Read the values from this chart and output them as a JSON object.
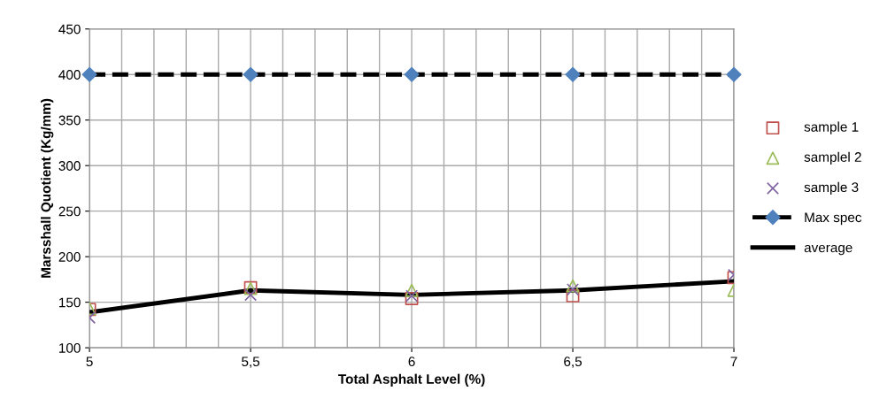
{
  "chart_data": {
    "type": "scatter",
    "xlabel": "Total Asphalt Level (%)",
    "ylabel": "Marsshall Quotient (Kg/mm)",
    "x": [
      5,
      5.5,
      6,
      6.5,
      7
    ],
    "xlim": [
      5,
      7
    ],
    "ylim": [
      100,
      450
    ],
    "xticks": [
      5,
      {
        "value": 5.1,
        "label": null
      },
      {
        "value": 5.2,
        "label": null
      },
      {
        "value": 5.3,
        "label": null
      },
      {
        "value": 5.4,
        "label": null
      },
      {
        "value": 5.5,
        "label": "5,5"
      },
      {
        "value": 5.6,
        "label": null
      },
      {
        "value": 5.7,
        "label": null
      },
      {
        "value": 5.8,
        "label": null
      },
      {
        "value": 5.9,
        "label": null
      },
      6,
      {
        "value": 6.1,
        "label": null
      },
      {
        "value": 6.2,
        "label": null
      },
      {
        "value": 6.3,
        "label": null
      },
      {
        "value": 6.4,
        "label": null
      },
      {
        "value": 6.5,
        "label": "6,5"
      },
      {
        "value": 6.6,
        "label": null
      },
      {
        "value": 6.7,
        "label": null
      },
      {
        "value": 6.8,
        "label": null
      },
      {
        "value": 6.9,
        "label": null
      },
      7
    ],
    "yticks": [
      100,
      150,
      200,
      250,
      300,
      350,
      400,
      450
    ],
    "grid": true,
    "legend": "right",
    "series": [
      {
        "name": "sample 1",
        "marker": "square",
        "color": "#c0504d",
        "values": [
          142,
          166,
          154,
          157,
          177
        ]
      },
      {
        "name": "samplel 2",
        "marker": "triangle",
        "color": "#9bbb59",
        "values": [
          143,
          165,
          163,
          168,
          163
        ]
      },
      {
        "name": "sample 3",
        "marker": "cross",
        "color": "#8064a2",
        "values": [
          133,
          158,
          157,
          164,
          180
        ]
      },
      {
        "name": "Max spec",
        "type": "line",
        "marker": "diamond",
        "line_style": "dashed",
        "color": "#000000",
        "colors": [
          "#4f81bd",
          "#4f81bd",
          "#4f81bd",
          "#4f81bd",
          "#4f81bd"
        ],
        "values": [
          400,
          400,
          400,
          400,
          400
        ]
      },
      {
        "name": "average",
        "type": "line",
        "marker": "none",
        "line_style": "solid",
        "color": "#000000",
        "values": [
          139,
          163,
          158,
          163,
          173
        ]
      }
    ]
  }
}
